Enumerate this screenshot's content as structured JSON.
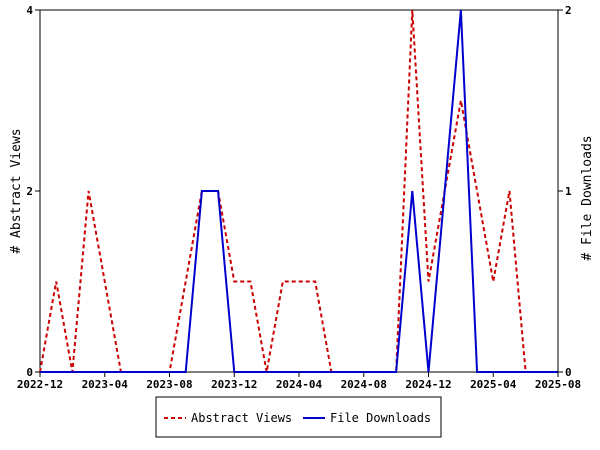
{
  "chart_data": {
    "type": "line",
    "x": [
      "2022-12",
      "2023-01",
      "2023-02",
      "2023-03",
      "2023-04",
      "2023-05",
      "2023-06",
      "2023-07",
      "2023-08",
      "2023-09",
      "2023-10",
      "2023-11",
      "2023-12",
      "2024-01",
      "2024-02",
      "2024-03",
      "2024-04",
      "2024-05",
      "2024-06",
      "2024-07",
      "2024-08",
      "2024-09",
      "2024-10",
      "2024-11",
      "2024-12",
      "2025-01",
      "2025-02",
      "2025-03",
      "2025-04",
      "2025-05",
      "2025-06",
      "2025-07",
      "2025-08"
    ],
    "x_ticks": [
      "2022-12",
      "2023-04",
      "2023-08",
      "2023-12",
      "2024-04",
      "2024-08",
      "2024-12",
      "2025-04",
      "2025-08"
    ],
    "series": [
      {
        "name": "Abstract Views",
        "axis": "left",
        "color": "#cc0000",
        "style": "dashed",
        "values": [
          0,
          1,
          0,
          2,
          1,
          0,
          0,
          0,
          0,
          1,
          2,
          2,
          1,
          1,
          0,
          1,
          1,
          1,
          0,
          0,
          0,
          0,
          0,
          4,
          1,
          2,
          3,
          2,
          1,
          2,
          0,
          0,
          0
        ]
      },
      {
        "name": "File Downloads",
        "axis": "right",
        "color": "#0000cc",
        "style": "solid",
        "values": [
          0,
          0,
          0,
          0,
          0,
          0,
          0,
          0,
          0,
          0,
          1,
          1,
          0,
          0,
          0,
          0,
          0,
          0,
          0,
          0,
          0,
          0,
          0,
          1,
          0,
          1,
          2,
          0,
          0,
          0,
          0,
          0,
          0
        ]
      }
    ],
    "y_left": {
      "label": "# Abstract Views",
      "ylim": [
        0,
        4
      ],
      "ticks": [
        "0",
        "2",
        "4"
      ]
    },
    "y_right": {
      "label": "# File Downloads",
      "ylim": [
        0,
        2
      ],
      "ticks": [
        "0",
        "1",
        "2"
      ]
    },
    "grid": false,
    "legend": "bottom"
  }
}
